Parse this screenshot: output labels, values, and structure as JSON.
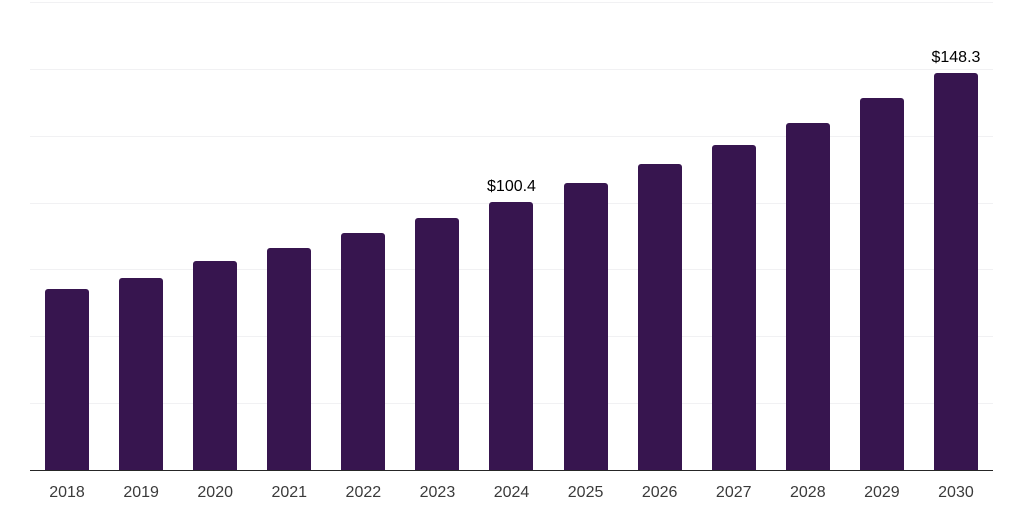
{
  "chart": {
    "background_color": "#ffffff",
    "bar_color": "#37154f",
    "gridline_color": "#f1f1f3",
    "axis_line_color": "#262626",
    "tick_label_color": "#3a3a3a",
    "value_label_color": "#000000"
  },
  "chart_data": {
    "type": "bar",
    "title": "",
    "xlabel": "",
    "ylabel": "",
    "categories": [
      "2018",
      "2019",
      "2020",
      "2021",
      "2022",
      "2023",
      "2024",
      "2025",
      "2026",
      "2027",
      "2028",
      "2029",
      "2030"
    ],
    "values": [
      67.6,
      71.9,
      78.3,
      83.0,
      88.6,
      94.4,
      100.4,
      107.2,
      114.3,
      121.7,
      129.8,
      139.0,
      148.3
    ],
    "value_labels": [
      {
        "index": 6,
        "text": "$100.4"
      },
      {
        "index": 12,
        "text": "$148.3"
      }
    ],
    "ylim": [
      0,
      175
    ],
    "gridline_step": 25,
    "grid": "horizontal",
    "y_axis_labels_visible": false,
    "legend_position": "none"
  }
}
